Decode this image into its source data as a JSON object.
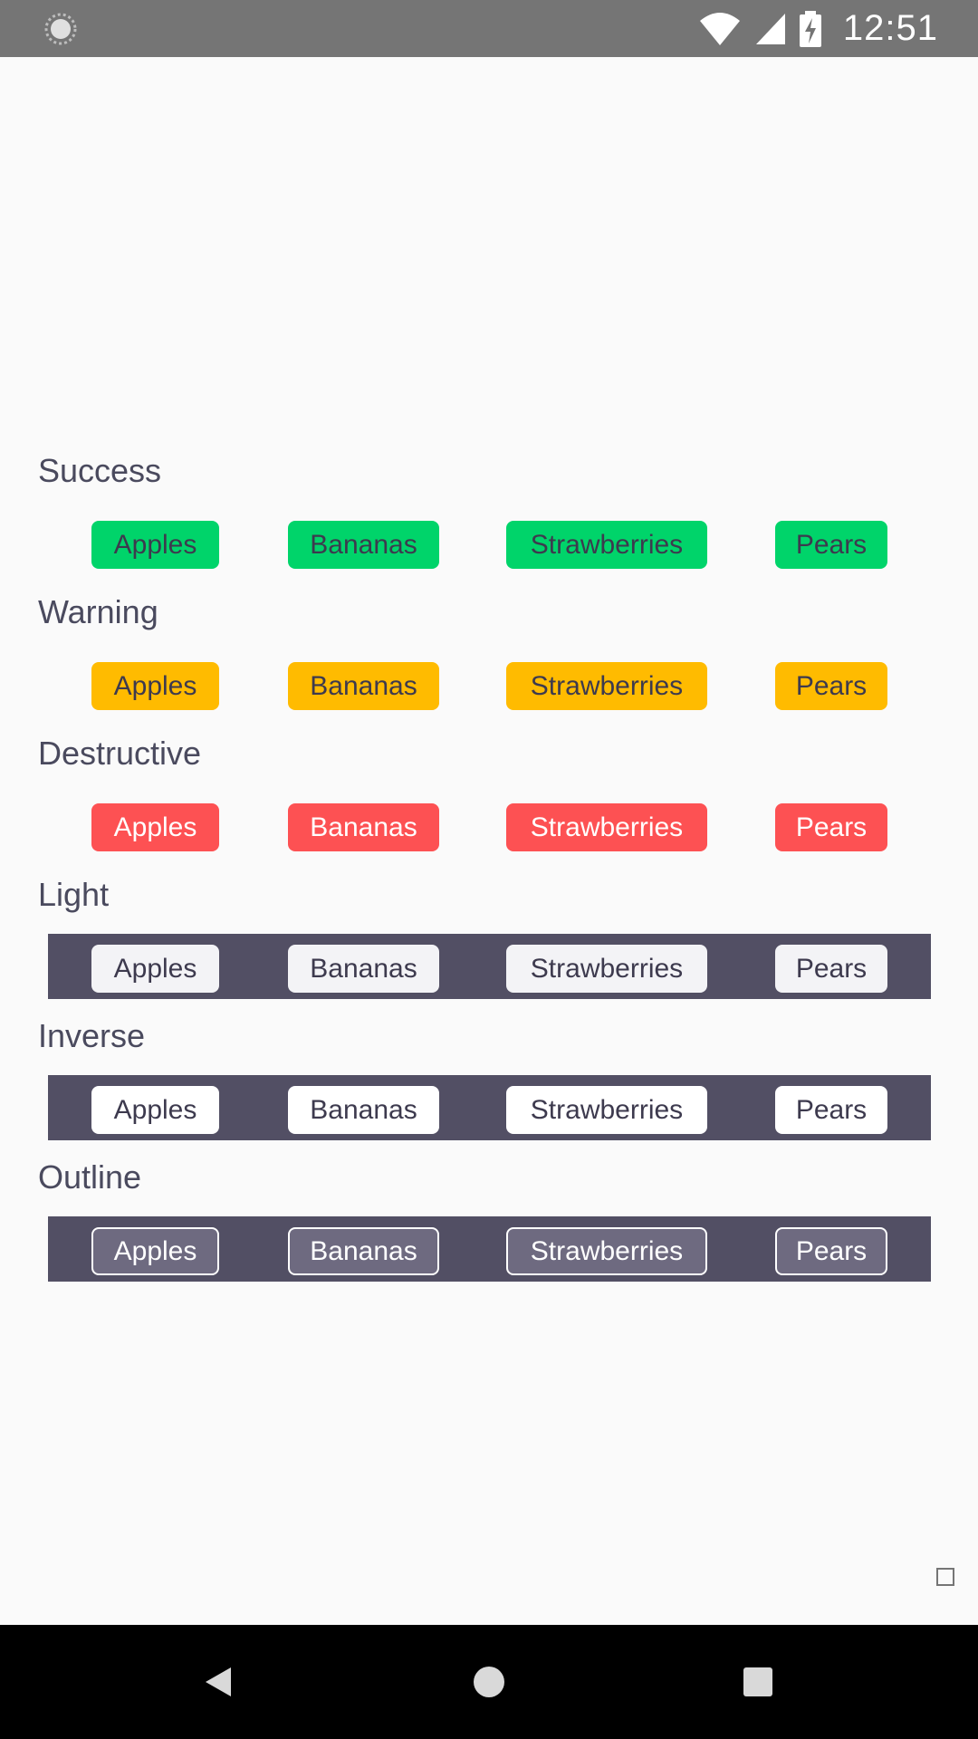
{
  "status_bar": {
    "time": "12:51",
    "left_icon": "loading-spinner-icon",
    "icons": [
      "wifi-icon",
      "cell-signal-icon",
      "battery-charging-icon"
    ]
  },
  "sections": [
    {
      "key": "success",
      "title": "Success",
      "badges": [
        "Apples",
        "Bananas",
        "Strawberries",
        "Pears"
      ],
      "color": "#00d46a"
    },
    {
      "key": "warning",
      "title": "Warning",
      "badges": [
        "Apples",
        "Bananas",
        "Strawberries",
        "Pears"
      ],
      "color": "#ffbb00"
    },
    {
      "key": "destructive",
      "title": "Destructive",
      "badges": [
        "Apples",
        "Bananas",
        "Strawberries",
        "Pears"
      ],
      "color": "#fd5153"
    },
    {
      "key": "light",
      "title": "Light",
      "badges": [
        "Apples",
        "Bananas",
        "Strawberries",
        "Pears"
      ],
      "color": "#f3f3f6"
    },
    {
      "key": "inverse",
      "title": "Inverse",
      "badges": [
        "Apples",
        "Bananas",
        "Strawberries",
        "Pears"
      ],
      "color": "#ffffff"
    },
    {
      "key": "outline",
      "title": "Outline",
      "badges": [
        "Apples",
        "Bananas",
        "Strawberries",
        "Pears"
      ],
      "color": "#6e6a80"
    }
  ],
  "navigation": {
    "back": "back-icon",
    "home": "home-icon",
    "recents": "recents-icon"
  }
}
